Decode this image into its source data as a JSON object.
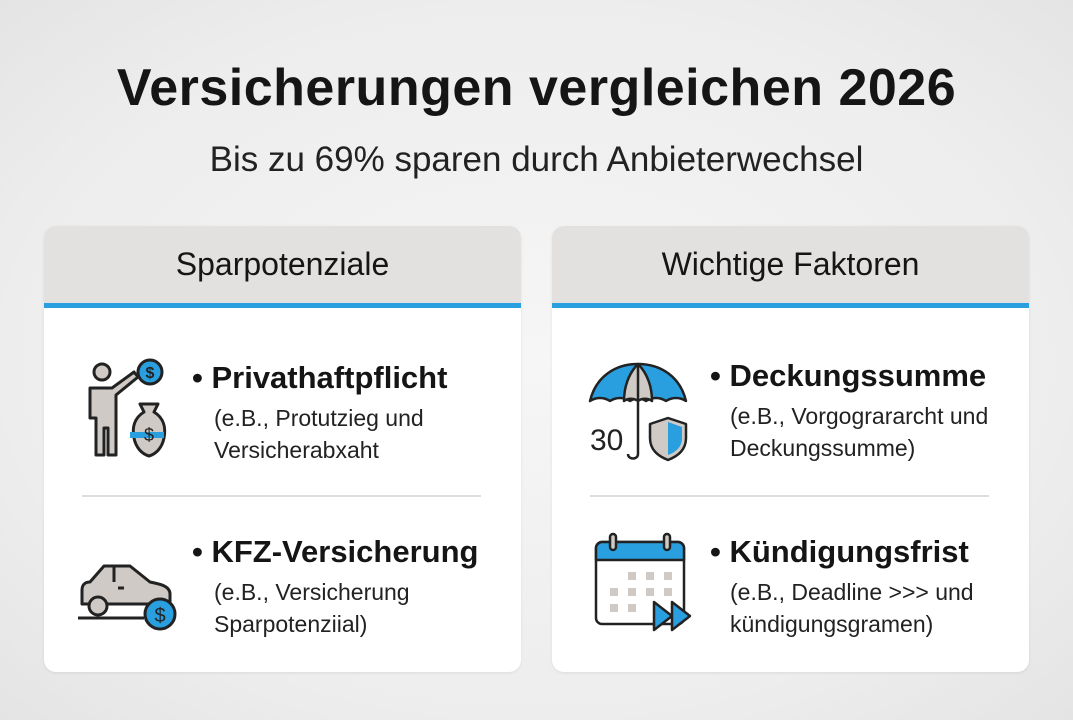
{
  "title": "Versicherungen vergleichen 2026",
  "subtitle": "Bis zu 69% sparen durch Anbieterwechsel",
  "accent": "#2a9fe0",
  "cards": [
    {
      "header": "Sparpotenziale",
      "items": [
        {
          "icon": "person-money-vase-icon",
          "title": "• Privathaftpflicht",
          "desc": "(e.B., Protutzieg und\nVersicherabxaht"
        },
        {
          "icon": "car-money-icon",
          "title": "• KFZ-Versicherung",
          "desc": "(e.B., Versicherung\nSparpotenziial)"
        }
      ]
    },
    {
      "header": "Wichtige Faktoren",
      "items": [
        {
          "icon": "umbrella-shield-icon",
          "icon_label": "30",
          "title": "• Deckungssumme",
          "desc": "(e.B., Vorgogrararcht und\nDeckungssumme)"
        },
        {
          "icon": "calendar-forward-icon",
          "title": "• Kündigungsfrist",
          "desc": "(e.B., Deadline >>> und\nkündigungsgramen)"
        }
      ]
    }
  ]
}
